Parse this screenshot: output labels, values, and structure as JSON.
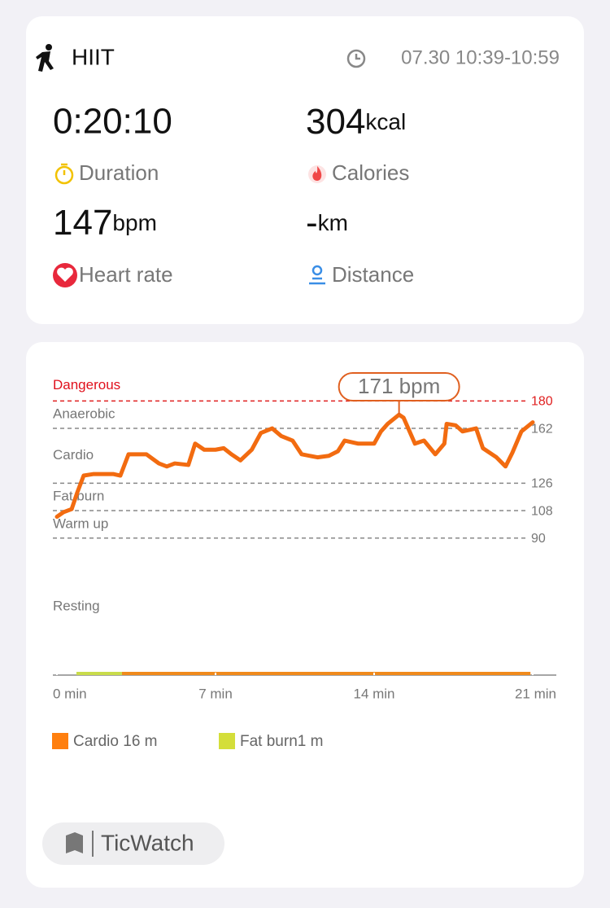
{
  "header": {
    "activity": "HIIT",
    "time": "07.30 10:39-10:59"
  },
  "stats": [
    {
      "value": "0:20:10",
      "unit": null,
      "label": "Duration"
    },
    {
      "value": "304",
      "unit": "kcal",
      "label": "Calories"
    },
    {
      "value": "147",
      "unit": "bpm",
      "label": "Heart rate"
    },
    {
      "value": "-",
      "unit": "km",
      "label": "Distance"
    }
  ],
  "chart_data": {
    "type": "line",
    "zones": [
      "Resting",
      "Warm up",
      "Fat burn",
      "Cardio",
      "Anaerobic",
      "Dangerous"
    ],
    "annotation": "171 bpm",
    "x": [
      0,
      0.29,
      0.65,
      0.9,
      1.18,
      1.6,
      2.5,
      2.8,
      3.16,
      3.95,
      4.5,
      4.85,
      5.2,
      5.8,
      6.1,
      6.5,
      7.0,
      7.36,
      7.7,
      8.1,
      8.6,
      9.0,
      9.5,
      9.9,
      10.4,
      10.8,
      11.5,
      12.0,
      12.4,
      12.7,
      13.3,
      14.0,
      14.3,
      14.6,
      15.1,
      15.3,
      15.8,
      16.2,
      16.7,
      17.1,
      17.2,
      17.6,
      17.9,
      18.5,
      18.8,
      19.4,
      19.8,
      20.1,
      20.5,
      21.0
    ],
    "series": [
      {
        "name": "Heart rate",
        "color": "#f26b10",
        "values": [
          104,
          107,
          109,
          120,
          131,
          132,
          132,
          131,
          145,
          145,
          139,
          137,
          139,
          138,
          152,
          148,
          148,
          149,
          145,
          141,
          148,
          159,
          162,
          157,
          154,
          145,
          143,
          144,
          147,
          154,
          152,
          152,
          160,
          165,
          171,
          169,
          152,
          154,
          145,
          152,
          165,
          164,
          160,
          162,
          149,
          143,
          137,
          146,
          160,
          166
        ]
      }
    ],
    "timeline": [
      {
        "color": "#c9dc4a",
        "start": 0.86,
        "end": 2.87
      },
      {
        "color": "#f08a1c",
        "start": 2.87,
        "end": 20.9
      }
    ],
    "legend": [
      {
        "name": "Cardio 16 m",
        "color": "#ff7f0e"
      },
      {
        "name": "Fat burn1 m",
        "color": "#d4de3a"
      }
    ],
    "xlim": [
      0,
      21
    ],
    "ylim": [
      0,
      200
    ],
    "xticks": [
      {
        "value": 0,
        "label": "0 min"
      },
      {
        "value": 7,
        "label": "7 min"
      },
      {
        "value": 14,
        "label": "14 min"
      },
      {
        "value": 21,
        "label": "21 min"
      }
    ],
    "yticks": [
      90,
      108,
      126,
      162,
      180
    ]
  },
  "footer": {
    "brand": "TicWatch"
  }
}
